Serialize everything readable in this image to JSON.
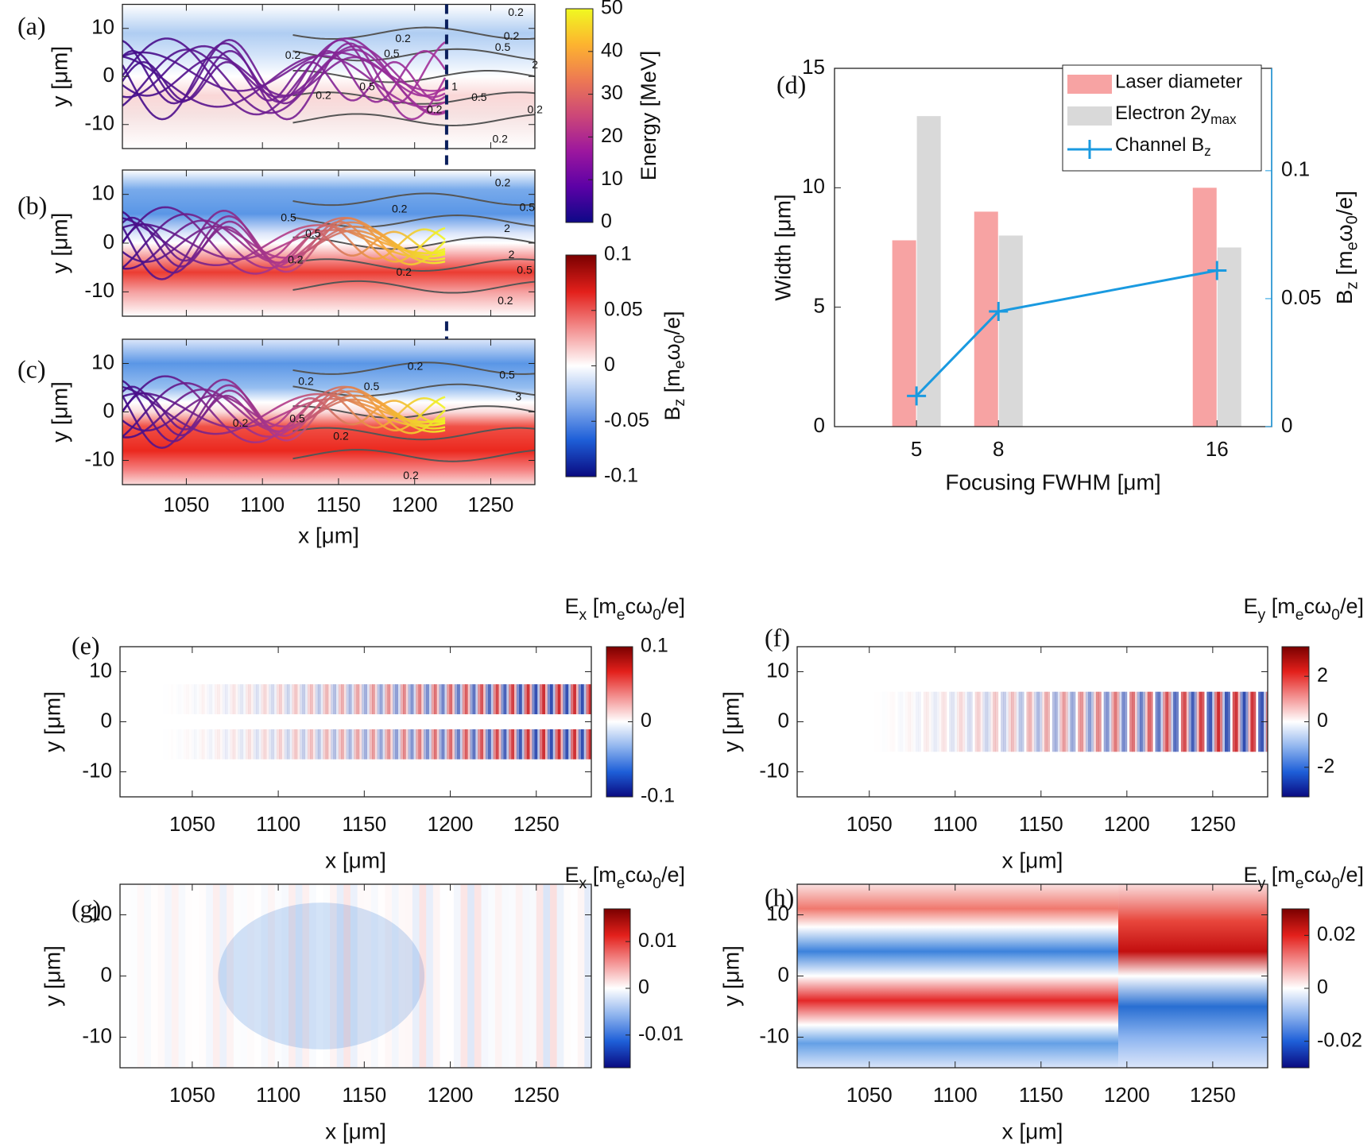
{
  "chart_data": [
    {
      "type": "heatmap",
      "label": "(a)",
      "ylabel": "y [μm]",
      "xlim": [
        1008,
        1279
      ],
      "ylim": [
        -15,
        15
      ],
      "xticks": [
        1050,
        1100,
        1150,
        1200,
        1250
      ],
      "yticks": [
        -10,
        0,
        10
      ],
      "xticklabels": false,
      "vline": 1221,
      "contour_labels": [
        0.2,
        0.5,
        0.2,
        0.2,
        0.5,
        1,
        0.5,
        0.2,
        0.2,
        0.2,
        0.5,
        2,
        0.2,
        0.2
      ],
      "colorbars": [
        {
          "label": "Energy [MeV]",
          "lim": [
            0,
            50
          ],
          "ticks": [
            0,
            10,
            20,
            30,
            40,
            50
          ],
          "colormap": [
            "#0d0887",
            "#5c01a6",
            "#9c179e",
            "#cc4778",
            "#ed7953",
            "#fdb42f",
            "#f0f921"
          ]
        }
      ]
    },
    {
      "type": "heatmap",
      "label": "(b)",
      "ylabel": "y [μm]",
      "xlim": [
        1008,
        1279
      ],
      "ylim": [
        -15,
        15
      ],
      "xticks": [
        1050,
        1100,
        1150,
        1200,
        1250
      ],
      "yticks": [
        -10,
        0,
        10
      ],
      "xticklabels": false,
      "contour_labels": [
        0.5,
        0.2,
        0.5,
        2,
        0.5,
        2,
        0.2,
        0.2,
        0.5,
        0.2,
        0.2
      ]
    },
    {
      "type": "heatmap",
      "label": "(c)",
      "ylabel": "y [μm]",
      "xlabel": "x [μm]",
      "xlim": [
        1008,
        1279
      ],
      "ylim": [
        -15,
        15
      ],
      "xticks": [
        1050,
        1100,
        1150,
        1200,
        1250
      ],
      "yticks": [
        -10,
        0,
        10
      ],
      "contour_labels": [
        0.2,
        0.5,
        0.2,
        0.5,
        3,
        0.2,
        0.5,
        0.2,
        0.2
      ],
      "colorbars": [
        {
          "label": [
            "B",
            "z",
            " [m",
            "e",
            "ω",
            "0",
            "/e]"
          ],
          "lim": [
            -0.1,
            0.1
          ],
          "ticks": [
            -0.1,
            -0.05,
            0,
            0.05,
            0.1
          ],
          "colormap": [
            "#0a0a80",
            "#1e5fd8",
            "#8fb4ee",
            "#ffffff",
            "#f39090",
            "#e3201b",
            "#7a0000"
          ]
        }
      ]
    },
    {
      "type": "bar",
      "label": "(d)",
      "xlabel": "Focusing FWHM [μm]",
      "ylabel": "Width [μm]",
      "y2label": [
        "B",
        "z",
        " [m",
        "e",
        "ω",
        "0",
        "/e]"
      ],
      "y2color": "#1a9ae0",
      "x": [
        5,
        8,
        16
      ],
      "xlim": [
        2,
        18
      ],
      "xticks": [
        5,
        8,
        16
      ],
      "ylim": [
        0,
        15
      ],
      "yticks": [
        0,
        5,
        10,
        15
      ],
      "y2lim": [
        0,
        0.14
      ],
      "y2ticks": [
        0,
        0.05,
        0.1
      ],
      "legend": "upper right",
      "series": [
        {
          "name": "Laser diameter",
          "color": "#f7a3a3",
          "values": [
            7.8,
            9,
            10
          ]
        },
        {
          "name": [
            "Electron 2y",
            "max"
          ],
          "color": "#d9d9d9",
          "values": [
            13,
            8,
            7.5
          ]
        },
        {
          "name": [
            "Channel B",
            "z"
          ],
          "color": "#1a9ae0",
          "type": "line",
          "axis": "y2",
          "values": [
            0.012,
            0.045,
            0.061
          ]
        }
      ]
    },
    {
      "type": "heatmap",
      "label": "(e)",
      "ylabel": "y [μm]",
      "xlabel": "x [μm]",
      "xlim": [
        1008,
        1282
      ],
      "ylim": [
        -15,
        15
      ],
      "xticks": [
        1050,
        1100,
        1150,
        1200,
        1250
      ],
      "yticks": [
        -10,
        0,
        10
      ],
      "colorbars": [
        {
          "label": [
            "E",
            "x",
            "  [m",
            "e",
            "cω",
            "0",
            "/e]"
          ],
          "lim": [
            -0.1,
            0.1
          ],
          "ticks": [
            -0.1,
            0,
            0.1
          ],
          "colormap": [
            "#0a0a80",
            "#1e5fd8",
            "#8fb4ee",
            "#ffffff",
            "#f39090",
            "#e3201b",
            "#7a0000"
          ]
        }
      ]
    },
    {
      "type": "heatmap",
      "label": "(f)",
      "ylabel": "y [μm]",
      "xlabel": "x [μm]",
      "xlim": [
        1008,
        1282
      ],
      "ylim": [
        -15,
        15
      ],
      "xticks": [
        1050,
        1100,
        1150,
        1200,
        1250
      ],
      "yticks": [
        -10,
        0,
        10
      ],
      "colorbars": [
        {
          "label": [
            "E",
            "y",
            "  [m",
            "e",
            "cω",
            "0",
            "/e]"
          ],
          "lim": [
            -3.3,
            3.3
          ],
          "ticks": [
            -2,
            0,
            2
          ],
          "colormap": [
            "#0a0a80",
            "#1e5fd8",
            "#8fb4ee",
            "#ffffff",
            "#f39090",
            "#e3201b",
            "#7a0000"
          ]
        }
      ]
    },
    {
      "type": "heatmap",
      "label": "(g)",
      "ylabel": "y [μm]",
      "xlabel": "x [μm]",
      "xlim": [
        1008,
        1282
      ],
      "ylim": [
        -15,
        15
      ],
      "xticks": [
        1050,
        1100,
        1150,
        1200,
        1250
      ],
      "yticks": [
        -10,
        0,
        10
      ],
      "colorbars": [
        {
          "label": [
            "E",
            "x",
            "  [m",
            "e",
            "cω",
            "0",
            "/e]"
          ],
          "lim": [
            -0.017,
            0.017
          ],
          "ticks": [
            -0.01,
            0,
            0.01
          ],
          "colormap": [
            "#0a0a80",
            "#1e5fd8",
            "#8fb4ee",
            "#ffffff",
            "#f39090",
            "#e3201b",
            "#7a0000"
          ]
        }
      ]
    },
    {
      "type": "heatmap",
      "label": "(h)",
      "ylabel": "y [μm]",
      "xlabel": "x [μm]",
      "xlim": [
        1008,
        1282
      ],
      "ylim": [
        -15,
        15
      ],
      "xticks": [
        1050,
        1100,
        1150,
        1200,
        1250
      ],
      "yticks": [
        -10,
        0,
        10
      ],
      "colorbars": [
        {
          "label": [
            "E",
            "y",
            "  [m",
            "e",
            "cω",
            "0",
            "/e]"
          ],
          "lim": [
            -0.03,
            0.03
          ],
          "ticks": [
            -0.02,
            0,
            0.02
          ],
          "colormap": [
            "#0a0a80",
            "#1e5fd8",
            "#8fb4ee",
            "#ffffff",
            "#f39090",
            "#e3201b",
            "#7a0000"
          ]
        }
      ]
    }
  ]
}
